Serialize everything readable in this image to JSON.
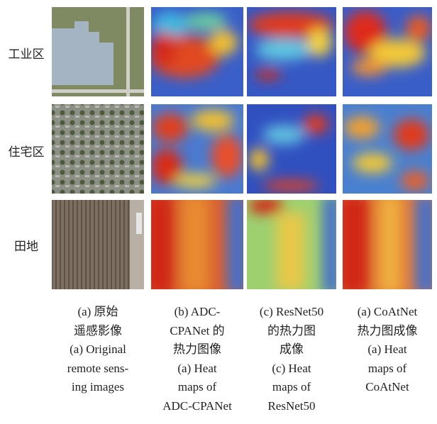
{
  "row_labels": [
    "工业区",
    "住宅区",
    "田地"
  ],
  "columns": [
    {
      "caption_lines": [
        "(a) 原始",
        "遥感影像",
        "(a) Original",
        "remote sens-",
        "ing images"
      ]
    },
    {
      "caption_lines": [
        "(b) ADC-",
        "CPANet 的",
        "热力图像",
        "(a) Heat",
        "maps of",
        "ADC-CPANet"
      ]
    },
    {
      "caption_lines": [
        "(c) ResNet50",
        "的热力图",
        "成像",
        "(c) Heat",
        "maps of",
        "ResNet50"
      ]
    },
    {
      "caption_lines": [
        "(a) CoAtNet",
        "热力图成像",
        "(a) Heat",
        "maps of",
        "CoAtNet"
      ]
    }
  ]
}
